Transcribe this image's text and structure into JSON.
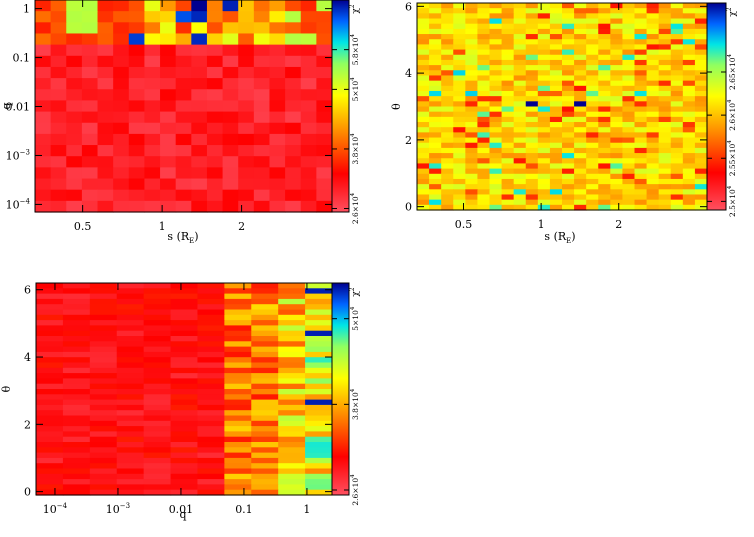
{
  "chart_data": [
    {
      "type": "heatmap",
      "id": "s-q",
      "xlabel": "s (R",
      "xlabel_sub": "E",
      "xlabel_close": ")",
      "ylabel": "q",
      "x_scale": "log",
      "y_scale": "log",
      "xlim": [
        0.33,
        4.4
      ],
      "ylim": [
        7e-05,
        1.5
      ],
      "xticks": [
        {
          "value": 0.5,
          "label": "0.5"
        },
        {
          "value": 1,
          "label": "1"
        },
        {
          "value": 2,
          "label": "2"
        }
      ],
      "yticks": [
        {
          "value": 1,
          "label": "1",
          "sup": ""
        },
        {
          "value": 0.1,
          "label": "0.1",
          "sup": ""
        },
        {
          "value": 0.01,
          "label": "0.01",
          "sup": ""
        },
        {
          "value": 0.001,
          "label": "10",
          "sup": "−3"
        },
        {
          "value": 0.0001,
          "label": "10",
          "sup": "−4"
        }
      ],
      "grid": false,
      "nx": 19,
      "ny": 19,
      "hot_rows": {
        "y_from": 0.02,
        "band": [
          0.3,
          0.8
        ]
      },
      "colorbar": {
        "label": "χ",
        "label_sup": "2",
        "range": [
          25300,
          68000
        ],
        "ticks": [
          {
            "value": 26000,
            "label": "2.6×10",
            "sup": "4"
          },
          {
            "value": 38000,
            "label": "3.8×10",
            "sup": "4"
          },
          {
            "value": 50000,
            "label": "5×10",
            "sup": "4"
          },
          {
            "value": 58000,
            "label": "5.8×10",
            "sup": "4"
          }
        ]
      }
    },
    {
      "type": "heatmap",
      "id": "s-theta",
      "xlabel": "s (R",
      "xlabel_sub": "E",
      "xlabel_close": ")",
      "ylabel": "θ",
      "x_scale": "log",
      "y_scale": "linear",
      "xlim": [
        0.33,
        4.4
      ],
      "ylim": [
        -0.1,
        6.1
      ],
      "xticks": [
        {
          "value": 0.5,
          "label": "0.5"
        },
        {
          "value": 1,
          "label": "1"
        },
        {
          "value": 2,
          "label": "2"
        }
      ],
      "yticks": [
        {
          "value": 0,
          "label": "0",
          "sup": ""
        },
        {
          "value": 2,
          "label": "2",
          "sup": ""
        },
        {
          "value": 4,
          "label": "4",
          "sup": ""
        },
        {
          "value": 6,
          "label": "6",
          "sup": ""
        }
      ],
      "grid": false,
      "nx": 24,
      "ny": 40,
      "highlights": [
        {
          "x": 0.92,
          "theta": 3.1
        },
        {
          "x": 1.45,
          "theta": 3.1
        }
      ],
      "colorbar": {
        "label": "χ",
        "label_sup": "2",
        "range": [
          24900,
          27300
        ],
        "ticks": [
          {
            "value": 25000,
            "label": "2.5×10",
            "sup": "4"
          },
          {
            "value": 25500,
            "label": "2.55×10",
            "sup": "4"
          },
          {
            "value": 26000,
            "label": "2.6×10",
            "sup": "4"
          },
          {
            "value": 26500,
            "label": "2.65×10",
            "sup": "4"
          }
        ]
      }
    },
    {
      "type": "heatmap",
      "id": "q-theta",
      "xlabel": "q",
      "xlabel_sub": "",
      "xlabel_close": "",
      "ylabel": "θ",
      "x_scale": "log",
      "y_scale": "linear",
      "xlim": [
        5e-05,
        2.5
      ],
      "ylim": [
        -0.1,
        6.2
      ],
      "xticks": [
        {
          "value": 0.0001,
          "label": "10",
          "sup": "−4"
        },
        {
          "value": 0.001,
          "label": "10",
          "sup": "−3"
        },
        {
          "value": 0.01,
          "label": "0.01",
          "sup": ""
        },
        {
          "value": 0.1,
          "label": "0.1",
          "sup": ""
        },
        {
          "value": 1,
          "label": "1",
          "sup": ""
        }
      ],
      "yticks": [
        {
          "value": 0,
          "label": "0",
          "sup": ""
        },
        {
          "value": 2,
          "label": "2",
          "sup": ""
        },
        {
          "value": 4,
          "label": "4",
          "sup": ""
        },
        {
          "value": 6,
          "label": "6",
          "sup": ""
        }
      ],
      "grid": false,
      "nx": 11,
      "ny": 40,
      "hot_cols": {
        "q_from": 0.05
      },
      "colorbar": {
        "label": "χ",
        "label_sup": "2",
        "range": [
          25300,
          55000
        ],
        "ticks": [
          {
            "value": 26000,
            "label": "2.6×10",
            "sup": "4"
          },
          {
            "value": 38000,
            "label": "3.8×10",
            "sup": "4"
          },
          {
            "value": 50000,
            "label": "5×10",
            "sup": "4"
          }
        ]
      }
    }
  ]
}
